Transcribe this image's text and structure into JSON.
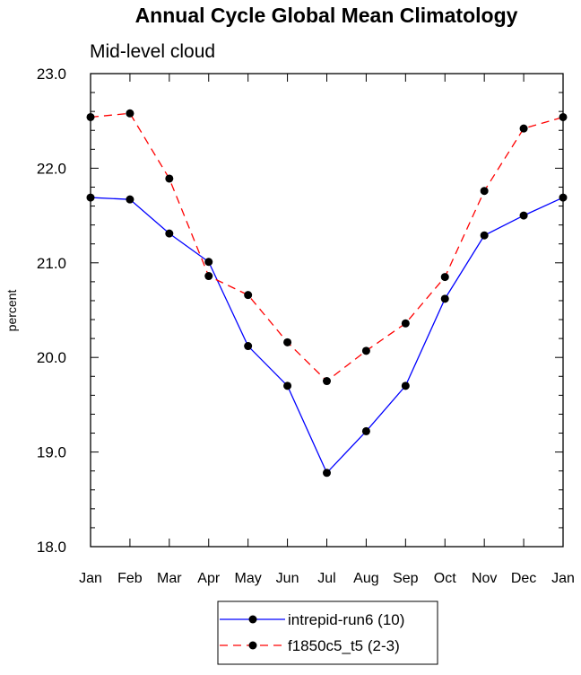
{
  "chart_data": {
    "type": "line",
    "title": "Annual Cycle Global Mean Climatology",
    "subtitle": "Mid-level cloud",
    "xlabel": "",
    "ylabel": "percent",
    "categories": [
      "Jan",
      "Feb",
      "Mar",
      "Apr",
      "May",
      "Jun",
      "Jul",
      "Aug",
      "Sep",
      "Oct",
      "Nov",
      "Dec",
      "Jan"
    ],
    "ylim": [
      18.0,
      23.0
    ],
    "yticks": [
      "18.0",
      "19.0",
      "20.0",
      "21.0",
      "22.0",
      "23.0"
    ],
    "grid": false,
    "legend_position": "bottom-center",
    "series": [
      {
        "name": "intrepid-run6 (10)",
        "color": "#0000ff",
        "line_style": "solid",
        "marker": "filled-circle",
        "values": [
          21.69,
          21.67,
          21.31,
          21.01,
          20.12,
          19.7,
          18.78,
          19.22,
          19.7,
          20.62,
          21.29,
          21.5,
          21.69
        ]
      },
      {
        "name": "f1850c5_t5 (2-3)",
        "color": "#ff0000",
        "line_style": "dashed",
        "marker": "filled-circle",
        "values": [
          22.54,
          22.58,
          21.89,
          20.86,
          20.66,
          20.16,
          19.75,
          20.07,
          20.36,
          20.85,
          21.76,
          22.42,
          22.54
        ]
      }
    ]
  }
}
